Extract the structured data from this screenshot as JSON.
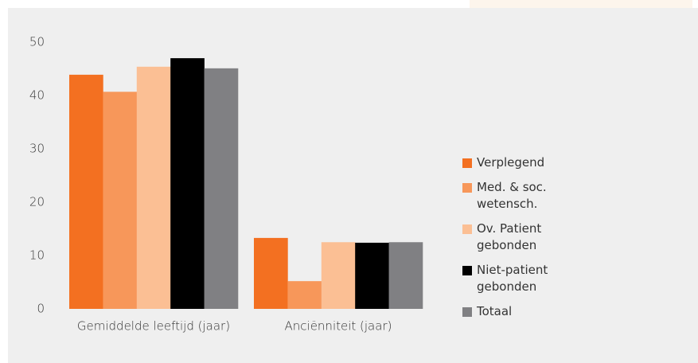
{
  "chart_data": {
    "type": "bar",
    "categories": [
      "Gemiddelde leeftijd (jaar)",
      "Anciënniteit (jaar)"
    ],
    "series": [
      {
        "name": "Verplegend",
        "color": "#f37021",
        "values": [
          43.9,
          13.3
        ]
      },
      {
        "name": "Med. & soc. wetensch.",
        "color": "#f7975a",
        "values": [
          40.7,
          5.2
        ]
      },
      {
        "name": "Ov. Patient gebonden",
        "color": "#fbbf94",
        "values": [
          45.4,
          12.5
        ]
      },
      {
        "name": "Niet-patient gebonden",
        "color": "#000000",
        "values": [
          47,
          12.4
        ]
      },
      {
        "name": "Totaal",
        "color": "#808083",
        "values": [
          45.1,
          12.5
        ]
      }
    ],
    "ylim": [
      0,
      50
    ],
    "yticks": [
      0,
      10,
      20,
      30,
      40,
      50
    ],
    "legend": "right"
  }
}
